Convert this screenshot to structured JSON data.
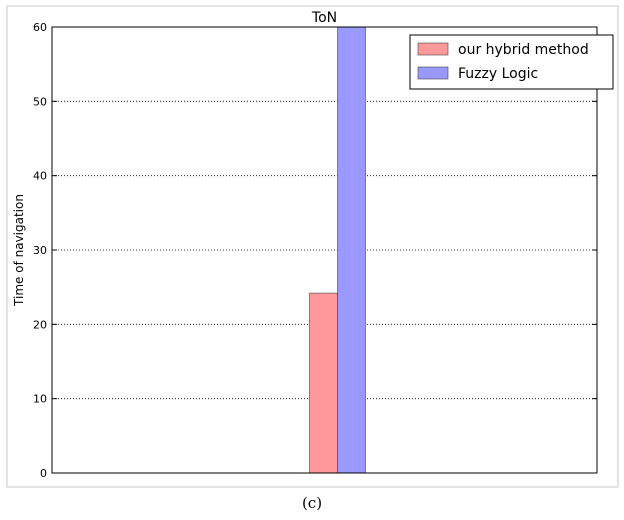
{
  "chart_data": {
    "type": "bar",
    "title": "ToN",
    "ylabel": "Time of navigation",
    "xlabel": "",
    "ylim": [
      0,
      60
    ],
    "yticks": [
      0,
      10,
      20,
      30,
      40,
      50,
      60
    ],
    "grid": "horizontal-dotted",
    "legend_position": "top-right",
    "series": [
      {
        "name": "our hybrid method",
        "values": [
          24.2
        ],
        "color": "#ff9999"
      },
      {
        "name": "Fuzzy Logic",
        "values": [
          60
        ],
        "color": "#9999ff"
      }
    ]
  },
  "caption": "(c)"
}
